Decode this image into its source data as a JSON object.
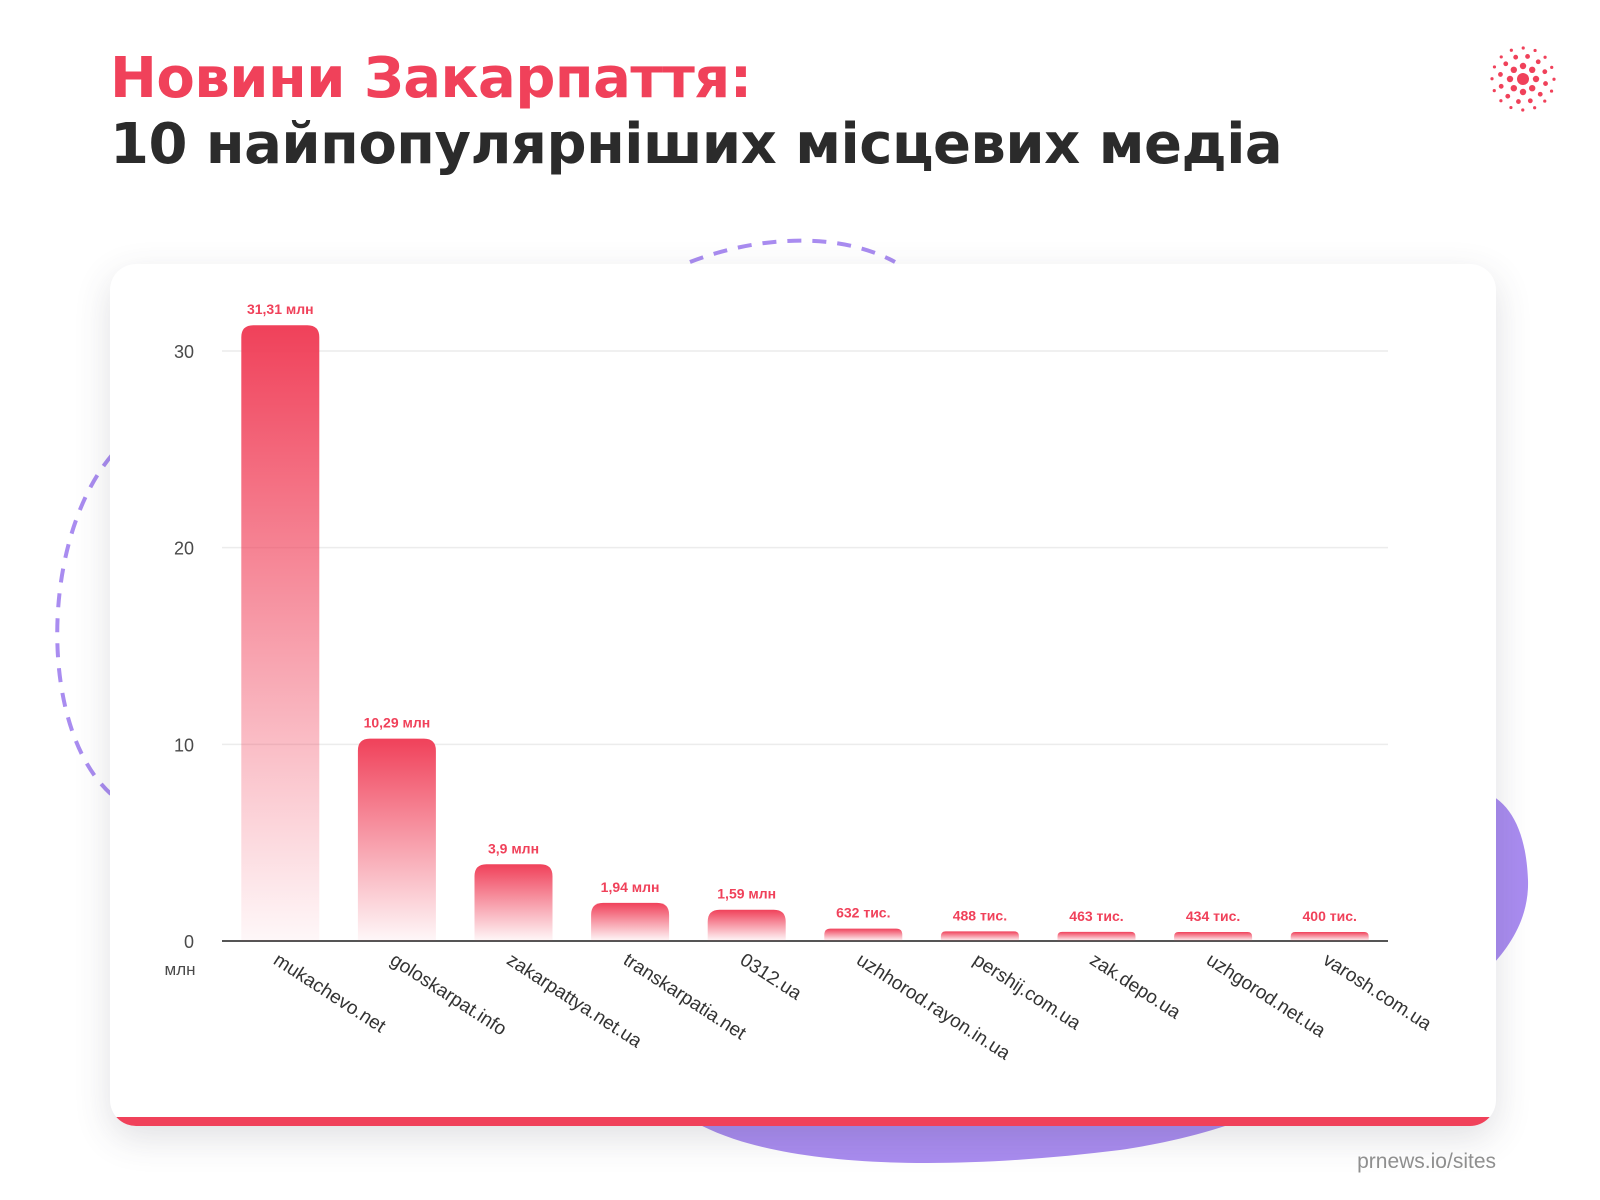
{
  "header": {
    "title_line1": "Новини Закарпаття:",
    "title_line2": "10 найпопулярніших місцевих медіа"
  },
  "footer": {
    "source": "prnews.io/sites"
  },
  "logo": {
    "icon": "dotted-burst-logo-icon"
  },
  "colors": {
    "accent": "#f0415a",
    "title_dark": "#2b2b2b",
    "decoration_purple": "#a98cf0",
    "text_gray": "#4a4a4a"
  },
  "chart_data": {
    "type": "bar",
    "title": "",
    "xlabel": "",
    "ylabel": "млн",
    "ylim": [
      0,
      30
    ],
    "yticks": [
      0,
      10,
      20,
      30
    ],
    "grid": true,
    "categories": [
      "mukachevo.net",
      "goloskarpat.info",
      "zakarpattya.net.ua",
      "transkarpatia.net",
      "0312.ua",
      "uzhhorod.rayon.in.ua",
      "pershij.com.ua",
      "zak.depo.ua",
      "uzhgorod.net.ua",
      "varosh.com.ua"
    ],
    "values": [
      31.31,
      10.29,
      3.9,
      1.94,
      1.59,
      0.632,
      0.488,
      0.463,
      0.434,
      0.4
    ],
    "data_labels": [
      "31,31 млн",
      "10,29 млн",
      "3,9 млн",
      "1,94 млн",
      "1,59 млн",
      "632 тис.",
      "488 тис.",
      "463 тис.",
      "434 тис.",
      "400 тис."
    ]
  }
}
